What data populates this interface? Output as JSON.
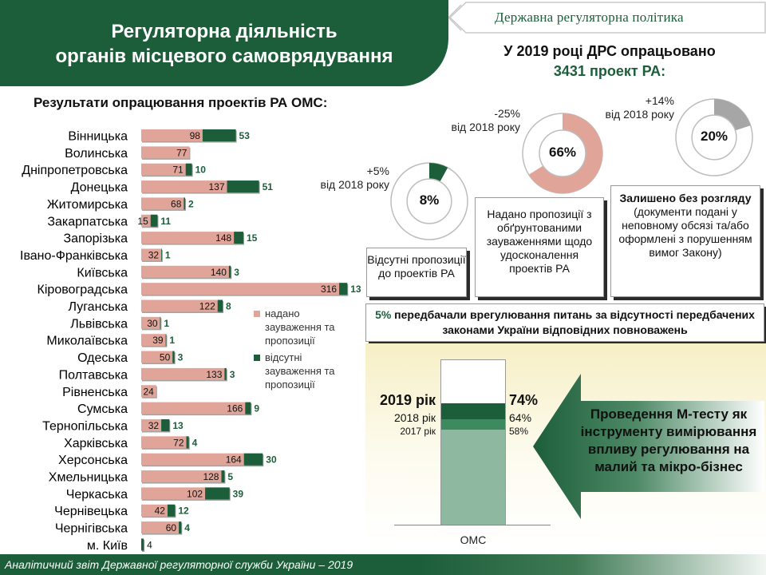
{
  "header": {
    "title_line1": "Регуляторна діяльність",
    "title_line2": "органів місцевого самоврядування",
    "policy_label": "Державна регуляторна політика"
  },
  "summary": {
    "line1": "У 2019 році ДРС опрацьовано",
    "line2": "3431 проект РА:"
  },
  "results_title": "Результати  опрацювання проектів РА ОМС:",
  "colors": {
    "green": "#1d5e3a",
    "salmon": "#e0a598",
    "grey": "#a6a6a6",
    "light_green": "#8fb8a0"
  },
  "legend": {
    "remarks": "надано зауваження та пропозиції",
    "no_remarks": "відсутні зауваження та пропозиції"
  },
  "chart_data": {
    "type": "bar",
    "orientation": "horizontal",
    "stacked": true,
    "categories": [
      "Вінницька",
      "Волинська",
      "Дніпропетровська",
      "Донецька",
      "Житомирська",
      "Закарпатська",
      "Запорізька",
      "Івано-Франківська",
      "Київська",
      "Кіровоградська",
      "Луганська",
      "Львівська",
      "Миколаївська",
      "Одеська",
      "Полтавська",
      "Рівненська",
      "Сумська",
      "Тернопільська",
      "Харківська",
      "Херсонська",
      "Хмельницька",
      "Черкаська",
      "Чернівецька",
      "Чернігівська",
      "м. Київ"
    ],
    "series": [
      {
        "name": "надано зауваження та пропозиції",
        "values": [
          98,
          77,
          71,
          137,
          68,
          15,
          148,
          32,
          140,
          316,
          122,
          30,
          39,
          50,
          133,
          24,
          166,
          32,
          72,
          164,
          128,
          102,
          42,
          60,
          0
        ]
      },
      {
        "name": "відсутні зауваження та пропозиції",
        "values": [
          53,
          null,
          10,
          51,
          2,
          11,
          15,
          1,
          3,
          13,
          8,
          1,
          1,
          3,
          3,
          null,
          9,
          13,
          4,
          30,
          5,
          39,
          12,
          4,
          4
        ]
      }
    ],
    "legend_position": "right",
    "grid": false
  },
  "donuts": [
    {
      "pct_label": "8%",
      "value": 8,
      "change": "+5%",
      "change_note": "від 2018 року",
      "color": "#1d5e3a"
    },
    {
      "pct_label": "66%",
      "value": 66,
      "change": "-25%",
      "change_note": "від 2018 року",
      "color": "#e0a598"
    },
    {
      "pct_label": "20%",
      "value": 20,
      "change": "+14%",
      "change_note": "від 2018 року",
      "color": "#a6a6a6"
    }
  ],
  "boxes": {
    "no_remarks": "Відсутні пропозиції до проектів РА",
    "remarks": "Надано пропозиції з обґрунтованими зауваженнями щодо удосконалення проектів РА",
    "unreviewed_title": "Залишено без розгляду",
    "unreviewed_detail": "(документи подані у неповному обсязі та/або оформлені з порушенням вимог Закону)"
  },
  "note": {
    "pct": "5%",
    "text_plain": " передбачали врегулювання питань ",
    "text_bold": "за відсутності передбачених законами України відповідних повноважень"
  },
  "mtest": {
    "axis_label": "ОМС",
    "years": [
      {
        "year": "2019 рік",
        "pct": "74%",
        "value": 74
      },
      {
        "year": "2018 рік",
        "pct": "64%",
        "value": 64
      },
      {
        "year": "2017 рік",
        "pct": "58%",
        "value": 58
      }
    ],
    "arrow_text": "Проведення М-тесту як інструменту вимірювання впливу регулювання на малий та мікро-бізнес"
  },
  "footer": "Аналітичний звіт Державної регуляторної служби України – 2019"
}
